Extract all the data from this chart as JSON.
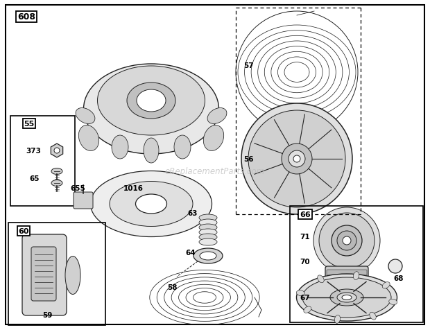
{
  "bg_color": "#ffffff",
  "lc": "#222222",
  "lw": 0.7,
  "watermark": "eReplacementParts.com",
  "wm_color": "#bbbbbb",
  "fig_w": 6.2,
  "fig_h": 4.77,
  "dpi": 100
}
